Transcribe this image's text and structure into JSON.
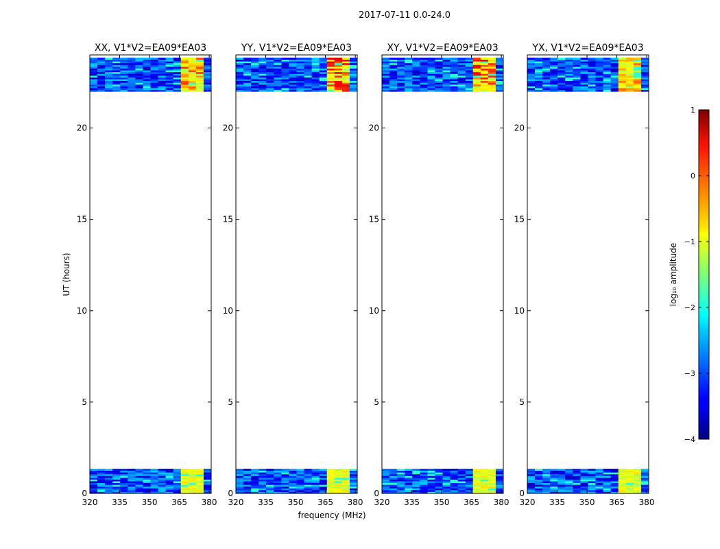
{
  "chart_data": {
    "type": "heatmap",
    "title": "2017-07-11 0.0-24.0",
    "xlabel": "frequency (MHz)",
    "ylabel": "UT (hours)",
    "xlim": [
      320,
      381
    ],
    "ylim": [
      0,
      24
    ],
    "xticks": [
      320,
      335,
      350,
      365,
      380
    ],
    "yticks": [
      0,
      5,
      10,
      15,
      20
    ],
    "panels": [
      {
        "title": "XX, V1*V2=EA09*EA03",
        "hot_block_log10": 0.2
      },
      {
        "title": "YY, V1*V2=EA09*EA03",
        "hot_block_log10": 0.6
      },
      {
        "title": "XY, V1*V2=EA09*EA03",
        "hot_block_log10": 0.5
      },
      {
        "title": "YX, V1*V2=EA09*EA03",
        "hot_block_log10": 0.0
      }
    ],
    "data_bands_ut": [
      [
        0.0,
        1.35
      ],
      [
        22.0,
        23.85
      ]
    ],
    "background_log10_amplitude": -3.0,
    "enhanced_freq_range_mhz": [
      363,
      380
    ],
    "enhanced_log10_amplitude": -1.0,
    "colorbar": {
      "label": "log₁₀ amplitude",
      "range": [
        -4,
        1
      ],
      "ticks": [
        1,
        0,
        -1,
        -2,
        -3,
        -4
      ],
      "tick_labels": [
        "1",
        "0",
        "−1",
        "−2",
        "−3",
        "−4"
      ],
      "colormap": "jet"
    }
  }
}
